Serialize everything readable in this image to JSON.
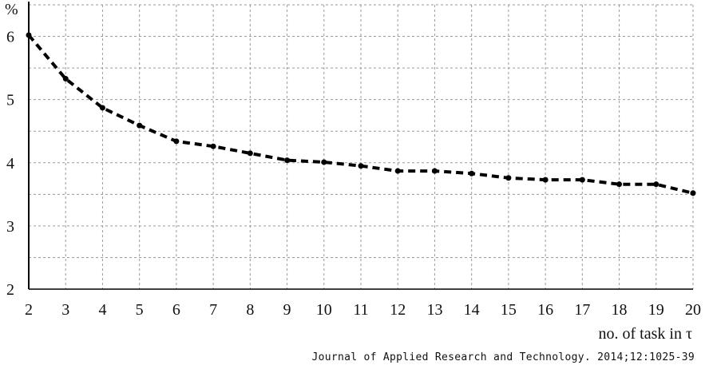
{
  "chart_data": {
    "type": "line",
    "title": "",
    "xlabel": "no. of task in τ",
    "ylabel": "%",
    "x": [
      2,
      3,
      4,
      5,
      6,
      7,
      8,
      9,
      10,
      11,
      12,
      13,
      14,
      15,
      16,
      17,
      18,
      19,
      20
    ],
    "series": [
      {
        "values": [
          6.02,
          5.33,
          4.87,
          4.59,
          4.34,
          4.26,
          4.15,
          4.04,
          4.01,
          3.95,
          3.87,
          3.87,
          3.83,
          3.76,
          3.73,
          3.73,
          3.66,
          3.66,
          3.52
        ],
        "style": "dashed",
        "color": "#000000"
      }
    ],
    "xlim": [
      2,
      20
    ],
    "ylim": [
      2,
      6.5
    ],
    "x_ticks": [
      "2",
      "3",
      "4",
      "5",
      "6",
      "7",
      "8",
      "9",
      "10",
      "11",
      "12",
      "13",
      "14",
      "15",
      "16",
      "17",
      "18",
      "19",
      "20"
    ],
    "y_ticks": [
      "2",
      "3",
      "4",
      "5",
      "6"
    ],
    "grid": true,
    "grid_style": "dashed"
  },
  "source": "Journal of Applied Research and Technology. 2014;12:1025-39"
}
